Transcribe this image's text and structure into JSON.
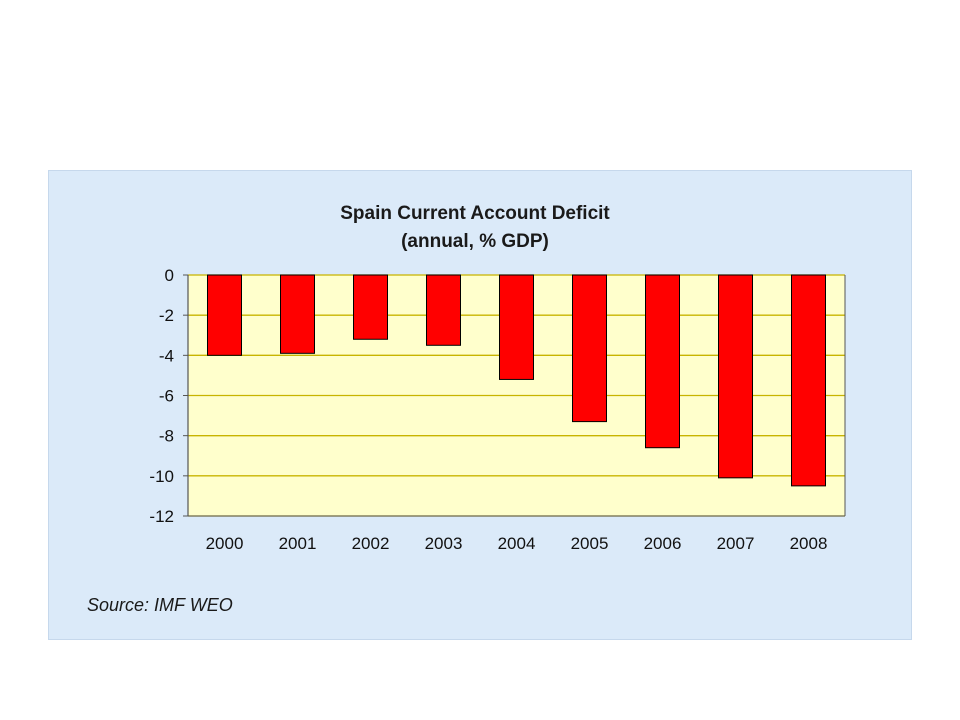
{
  "chart_data": {
    "type": "bar",
    "title": "Spain Current Account Deficit",
    "subtitle": "(annual, % GDP)",
    "categories": [
      "2000",
      "2001",
      "2002",
      "2003",
      "2004",
      "2005",
      "2006",
      "2007",
      "2008"
    ],
    "values": [
      -4.0,
      -3.9,
      -3.2,
      -3.5,
      -5.2,
      -7.3,
      -8.6,
      -10.1,
      -10.5
    ],
    "yticks": [
      "0",
      "-2",
      "-4",
      "-6",
      "-8",
      "-10",
      "-12"
    ],
    "ylim": [
      -12,
      0
    ],
    "grid": true,
    "legend": "none",
    "colors": {
      "bar": "#ff0000",
      "bar_border": "#000000",
      "plot_bg": "#ffffcc",
      "grid": "#c8b400",
      "panel_bg": "#dbeaf9"
    }
  },
  "source": "Source: IMF WEO"
}
